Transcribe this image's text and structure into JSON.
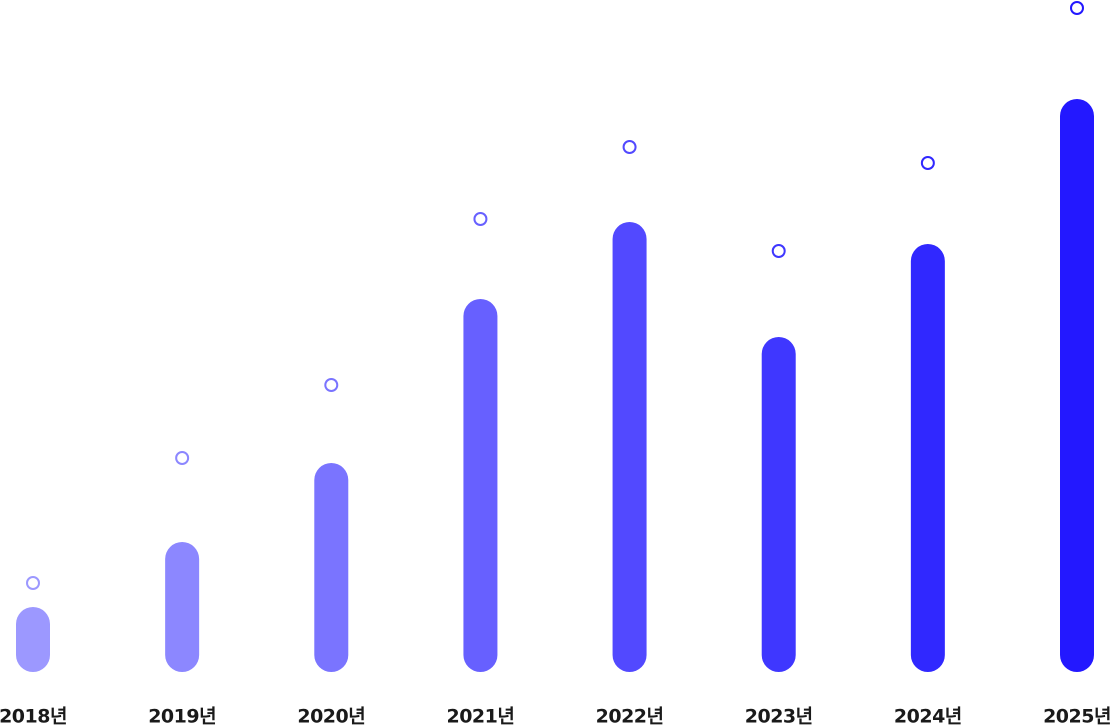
{
  "chart_data": {
    "type": "bar",
    "categories": [
      "2018년",
      "2019년",
      "2020년",
      "2021년",
      "2022년",
      "2023년",
      "2024년",
      "2025년"
    ],
    "series": [
      {
        "values": [
          65,
          130,
          209,
          373,
          450,
          335,
          428,
          573
        ],
        "colors": [
          "#9c98ff",
          "#8c87ff",
          "#7a74ff",
          "#6760ff",
          "#5249ff",
          "#3f37ff",
          "#3028ff",
          "#2318ff"
        ]
      },
      {
        "values": [
          89,
          214,
          287,
          453,
          525,
          421,
          509,
          664
        ],
        "colors": [
          "#9c98ff",
          "#8c87ff",
          "#7a74ff",
          "#6760ff",
          "#5249ff",
          "#3f37ff",
          "#3028ff",
          "#2318ff"
        ]
      }
    ],
    "ylim": [
      0,
      672
    ]
  }
}
